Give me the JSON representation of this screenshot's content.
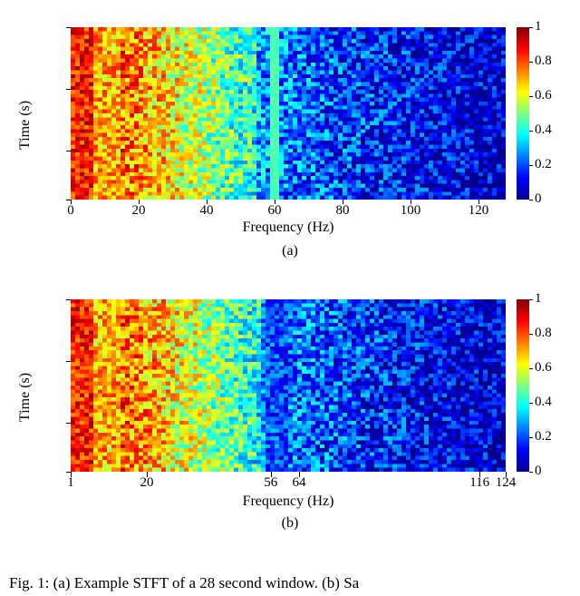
{
  "colormap": {
    "name": "jet",
    "stops": [
      {
        "p": 0.0,
        "c": "#00008f"
      },
      {
        "p": 0.125,
        "c": "#0000ff"
      },
      {
        "p": 0.375,
        "c": "#00ffff"
      },
      {
        "p": 0.625,
        "c": "#ffff00"
      },
      {
        "p": 0.875,
        "c": "#ff0000"
      },
      {
        "p": 1.0,
        "c": "#800000"
      }
    ]
  },
  "colorbar": {
    "clim": [
      0,
      1
    ],
    "ticks": [
      0,
      0.2,
      0.4,
      0.6,
      0.8,
      1
    ],
    "tick_fontsize": 15
  },
  "figure_a": {
    "type": "heatmap",
    "grid_cols": 96,
    "grid_rows": 44,
    "xlabel": "Frequency (Hz)",
    "ylabel": "Time (s)",
    "label_fontsize": 16,
    "xlim": [
      0,
      128
    ],
    "ylim": [
      0,
      28
    ],
    "xticks": [
      0,
      20,
      40,
      60,
      80,
      100,
      120
    ],
    "yticks": [
      0,
      10,
      20,
      28
    ],
    "sublabel": "(a)",
    "tick_fontsize": 15,
    "background_color": "#ffffff",
    "data_model": {
      "description": "STFT-like spectrogram: intensity decays from ~0.9 at low freq to ~0.05 at high freq with per-pixel noise. Narrow artifact band around 60 Hz.",
      "base_low": 0.92,
      "base_high": 0.06,
      "decay_knee_hz": 55,
      "noise_amplitude": 0.18,
      "artifact_band": {
        "start_hz": 59,
        "end_hz": 61,
        "value": 0.45
      }
    }
  },
  "figure_b": {
    "type": "heatmap",
    "grid_cols": 96,
    "grid_rows": 44,
    "xlabel": "Frequency (Hz)",
    "ylabel": "Time (s)",
    "label_fontsize": 16,
    "xlim_logical": [
      1,
      124
    ],
    "ylim": [
      0,
      28
    ],
    "xticks_positions": [
      0.0,
      0.175,
      0.46,
      0.525,
      0.94,
      1.0
    ],
    "xticks_labels": [
      "1",
      "20",
      "56",
      "64",
      "116",
      "124"
    ],
    "yticks": [
      0,
      10,
      20,
      28
    ],
    "sublabel": "(b)",
    "tick_fontsize": 15,
    "background_color": "#ffffff",
    "data_model": {
      "description": "Same data with 60 Hz band removed / notched — smooth gradient low→high freq with noise, no cyan stripe.",
      "base_low": 0.92,
      "base_high": 0.06,
      "decay_knee_hz": 55,
      "noise_amplitude": 0.18
    }
  },
  "caption_fragment": "Fig. 1: (a) Example STFT of a 28 second window. (b) Sa"
}
